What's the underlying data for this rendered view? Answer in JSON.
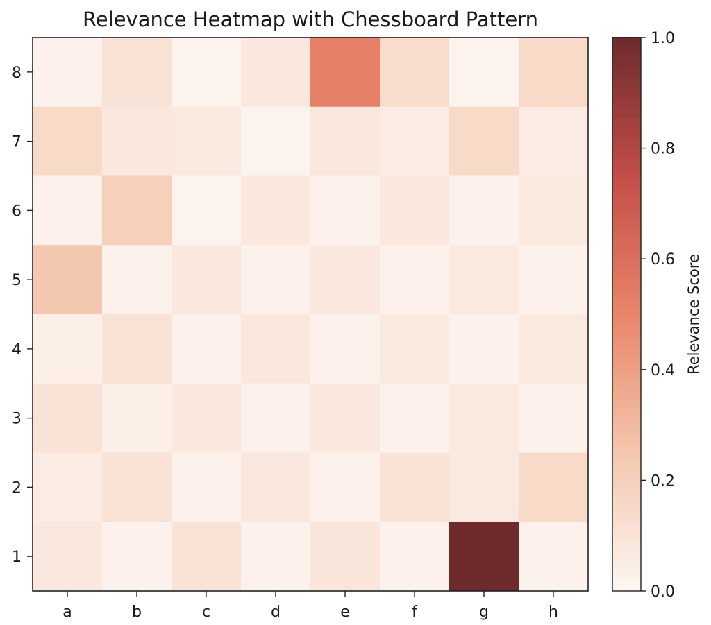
{
  "chart_data": {
    "type": "heatmap",
    "title": "Relevance Heatmap with Chessboard Pattern",
    "x_categories": [
      "a",
      "b",
      "c",
      "d",
      "e",
      "f",
      "g",
      "h"
    ],
    "y_categories": [
      "8",
      "7",
      "6",
      "5",
      "4",
      "3",
      "2",
      "1"
    ],
    "values": [
      [
        0.03,
        0.1,
        0.02,
        0.08,
        0.52,
        0.14,
        0.02,
        0.15
      ],
      [
        0.15,
        0.08,
        0.07,
        0.02,
        0.08,
        0.05,
        0.15,
        0.06
      ],
      [
        0.03,
        0.2,
        0.02,
        0.08,
        0.03,
        0.08,
        0.03,
        0.07
      ],
      [
        0.24,
        0.03,
        0.08,
        0.03,
        0.08,
        0.03,
        0.07,
        0.03
      ],
      [
        0.04,
        0.1,
        0.03,
        0.08,
        0.03,
        0.07,
        0.03,
        0.07
      ],
      [
        0.1,
        0.04,
        0.08,
        0.03,
        0.08,
        0.03,
        0.07,
        0.03
      ],
      [
        0.06,
        0.1,
        0.03,
        0.08,
        0.03,
        0.1,
        0.07,
        0.15
      ],
      [
        0.08,
        0.03,
        0.1,
        0.03,
        0.09,
        0.03,
        1.0,
        0.03
      ]
    ],
    "colorbar": {
      "label": "Relevance Score",
      "range": [
        0.0,
        1.0
      ],
      "ticks": [
        "0.0",
        "0.2",
        "0.4",
        "0.6",
        "0.8",
        "1.0"
      ]
    },
    "colormap": [
      "#fdf7f3",
      "#f4c6ad",
      "#e9856a",
      "#c24e48",
      "#6f2a2d"
    ]
  }
}
